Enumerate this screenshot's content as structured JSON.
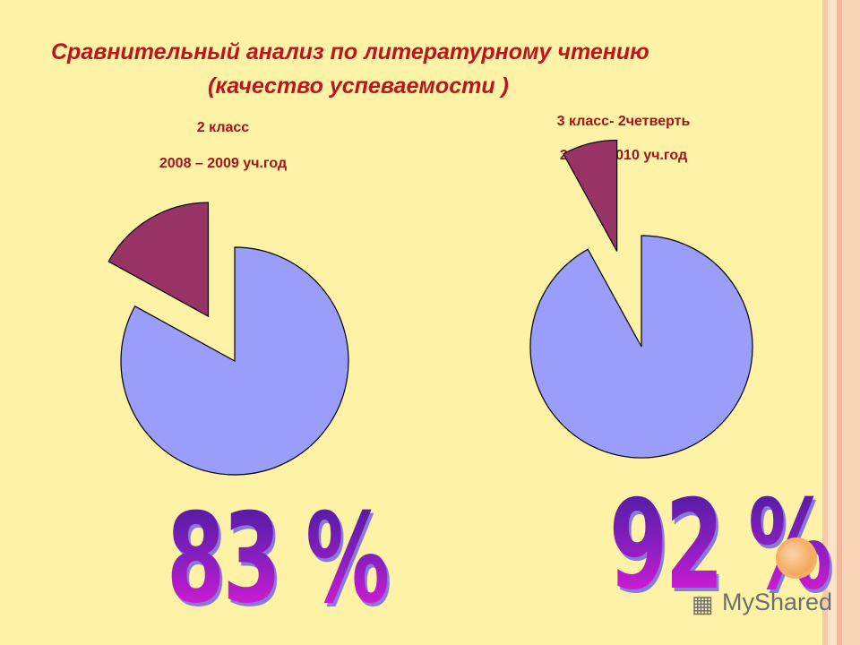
{
  "title_line1": "Сравнительный анализ по литературному чтению",
  "title_line2": "(качество успеваемости )",
  "colors": {
    "main": "#9b9dfb",
    "rest": "#993366",
    "title": "#c0141c"
  },
  "chart_data": [
    {
      "type": "pie",
      "caption_line1": "2 класс",
      "caption_line2": "2008 – 2009 уч.год",
      "values": [
        83,
        17
      ],
      "big_label": "83 %"
    },
    {
      "type": "pie",
      "caption_line1": "3 класс- 2четверть",
      "caption_line2": "2009 – 2010 уч.год",
      "values": [
        92,
        8
      ],
      "big_label": "92 %"
    }
  ],
  "watermark": {
    "brand": "MyShared",
    "icon": "presentation-board-icon"
  }
}
